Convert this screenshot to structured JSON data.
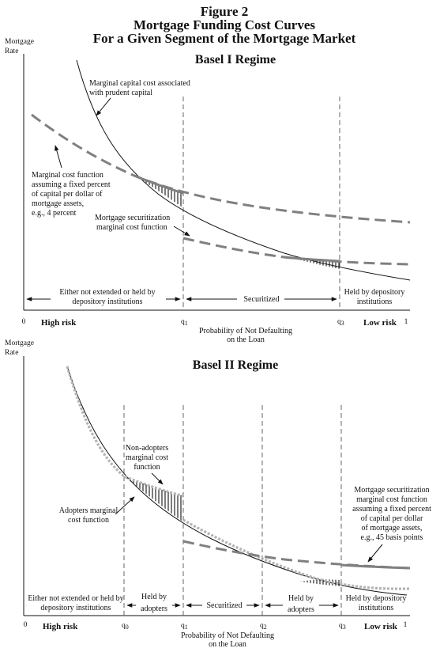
{
  "figure": {
    "title_line1": "Figure 2",
    "title_line2": "Mortgage Funding Cost Curves",
    "title_line3": "For a Given Segment of the Mortgage Market"
  },
  "basel1": {
    "title": "Basel I Regime",
    "y_axis_line1": "Mortgage",
    "y_axis_line2": "Rate",
    "ann_prudent_line1": "Marginal capital cost associated",
    "ann_prudent_line2": "with prudent capital",
    "ann_fixed_line1": "Marginal cost function",
    "ann_fixed_line2": "assuming a fixed percent",
    "ann_fixed_line3": "of capital per dollar of",
    "ann_fixed_line4": "mortgage assets,",
    "ann_fixed_line5": "e.g., 4 percent",
    "ann_secur_line1": "Mortgage securitization",
    "ann_secur_line2": "marginal cost function",
    "region_left_line1": "Either not extended or held by",
    "region_left_line2": "depository institutions",
    "region_mid": "Securitized",
    "region_right_line1": "Held by depository",
    "region_right_line2": "institutions",
    "x_zero": "0",
    "x_one": "1",
    "x_high": "High risk",
    "x_low": "Low risk",
    "q1": "q",
    "q1_sub": "1",
    "q3": "q",
    "q3_sub": "3",
    "x_title_line1": "Probability of Not Defaulting",
    "x_title_line2": "on the Loan"
  },
  "basel2": {
    "title": "Basel II Regime",
    "y_axis_line1": "Mortgage",
    "y_axis_line2": "Rate",
    "ann_nonadopt_line1": "Non-adopters",
    "ann_nonadopt_line2": "marginal cost",
    "ann_nonadopt_line3": "function",
    "ann_adopt_line1": "Adopters marginal",
    "ann_adopt_line2": "cost function",
    "ann_secur_line1": "Mortgage securitization",
    "ann_secur_line2": "marginal cost function",
    "ann_secur_line3": "assuming a fixed percent",
    "ann_secur_line4": "of capital per dollar",
    "ann_secur_line5": "of mortgage assets,",
    "ann_secur_line6": "e.g., 45 basis points",
    "region1_line1": "Either not extended or held by",
    "region1_line2": "depository institutions",
    "region2_line1": "Held by",
    "region2_line2": "adopters",
    "region3": "Securitized",
    "region4_line1": "Held by",
    "region4_line2": "adopters",
    "region5_line1": "Held by depository",
    "region5_line2": "institutions",
    "x_zero": "0",
    "x_one": "1",
    "x_high": "High risk",
    "x_low": "Low risk",
    "q0": "q",
    "q0_sub": "0",
    "q1": "q",
    "q1_sub": "1",
    "q2": "q",
    "q2_sub": "2",
    "q3": "q",
    "q3_sub": "3",
    "x_title_line1": "Probability of Not Defaulting",
    "x_title_line2": "on the Loan"
  }
}
